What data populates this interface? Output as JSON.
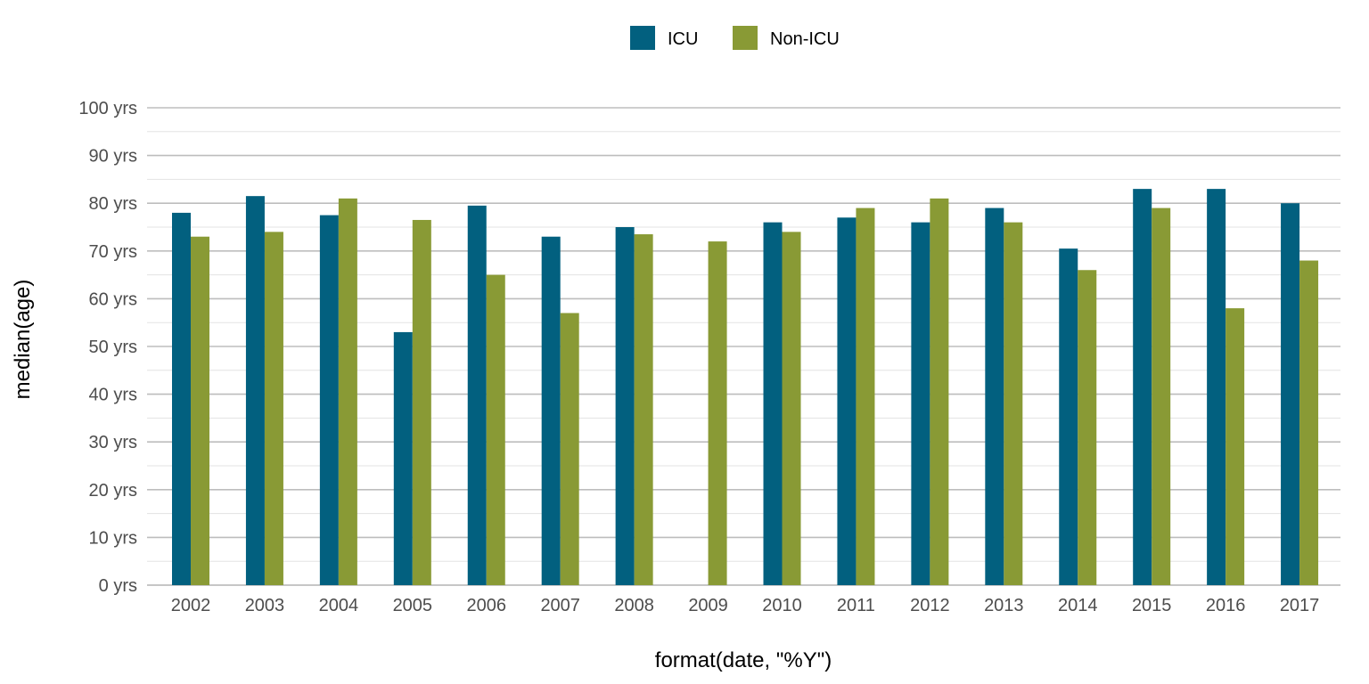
{
  "chart_data": {
    "type": "bar",
    "xlabel": "format(date, \"%Y\")",
    "ylabel": "median(age)",
    "ylim": [
      0,
      100
    ],
    "y_ticks": [
      0,
      10,
      20,
      30,
      40,
      50,
      60,
      70,
      80,
      90,
      100
    ],
    "y_tick_suffix": " yrs",
    "grid": true,
    "legend_position": "top",
    "categories": [
      "2002",
      "2003",
      "2004",
      "2005",
      "2006",
      "2007",
      "2008",
      "2009",
      "2010",
      "2011",
      "2012",
      "2013",
      "2014",
      "2015",
      "2016",
      "2017"
    ],
    "series": [
      {
        "name": "ICU",
        "color": "#02607f",
        "values": [
          78,
          81.5,
          77.5,
          53,
          79.5,
          73,
          75,
          null,
          76,
          77,
          76,
          79,
          70.5,
          83,
          83,
          80
        ]
      },
      {
        "name": "Non-ICU",
        "color": "#899a35",
        "values": [
          73,
          74,
          81,
          76.5,
          65,
          57,
          73.5,
          72,
          74,
          79,
          81,
          76,
          66,
          79,
          58,
          68
        ]
      }
    ]
  }
}
